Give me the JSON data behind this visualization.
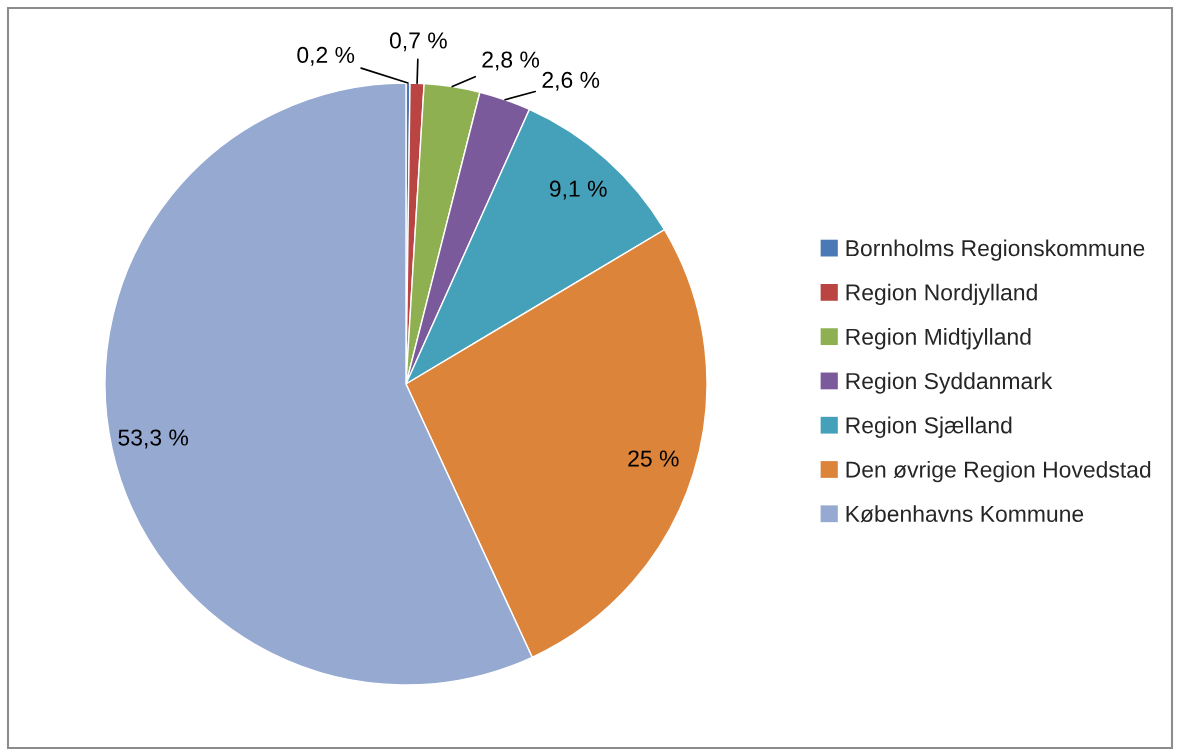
{
  "chart_data": {
    "type": "pie",
    "categories": [
      "Bornholms Regionskommune",
      "Region Nordjylland",
      "Region Midtjylland",
      "Region Syddanmark",
      "Region Sjælland",
      "Den øvrige Region Hovedstad",
      "Københavns Kommune"
    ],
    "values": [
      0.2,
      0.7,
      2.8,
      2.6,
      9.1,
      25,
      53.3
    ],
    "colors": [
      "#4a7ab5",
      "#b94441",
      "#8fb050",
      "#7a5a9a",
      "#45a1ba",
      "#dd843b",
      "#95a9d1"
    ],
    "value_labels": [
      "0,2 %",
      "0,7 %",
      "2,8 %",
      "2,6 %",
      "9,1 %",
      "25 %",
      "53,3 %"
    ],
    "legend": "right"
  }
}
